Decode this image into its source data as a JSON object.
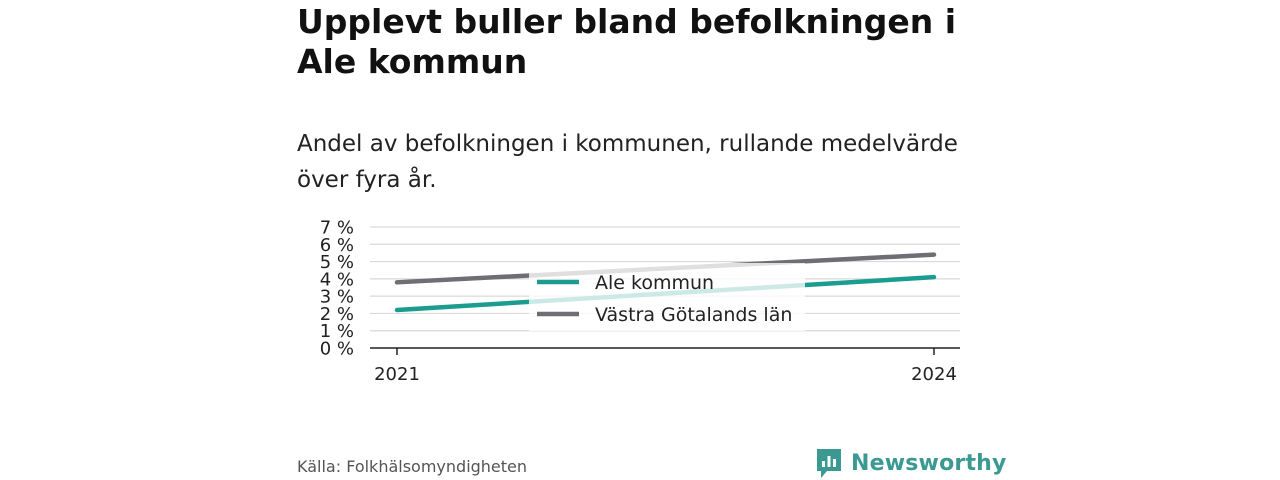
{
  "header": {
    "title": "Upplevt buller bland befolkningen i Ale kommun",
    "subtitle": "Andel av befolkningen i kommunen, rullande medelvärde över fyra år."
  },
  "chart_data": {
    "type": "line",
    "x": [
      "2021",
      "2024"
    ],
    "y_ticks": [
      "0 %",
      "1 %",
      "2 %",
      "3 %",
      "4 %",
      "5 %",
      "6 %",
      "7 %"
    ],
    "ylim": [
      0,
      7
    ],
    "grid": true,
    "legend_position": "center",
    "series": [
      {
        "name": "Ale kommun",
        "values": [
          2.2,
          4.1
        ],
        "color": "#1a9c8e"
      },
      {
        "name": "Västra Götalands län",
        "values": [
          3.8,
          5.4
        ],
        "color": "#6f6e74"
      }
    ]
  },
  "footer": {
    "source": "Källa: Folkhälsomyndigheten",
    "brand": "Newsworthy",
    "brand_icon": "newsworthy-logo-icon",
    "brand_color": "#3a9a92"
  }
}
